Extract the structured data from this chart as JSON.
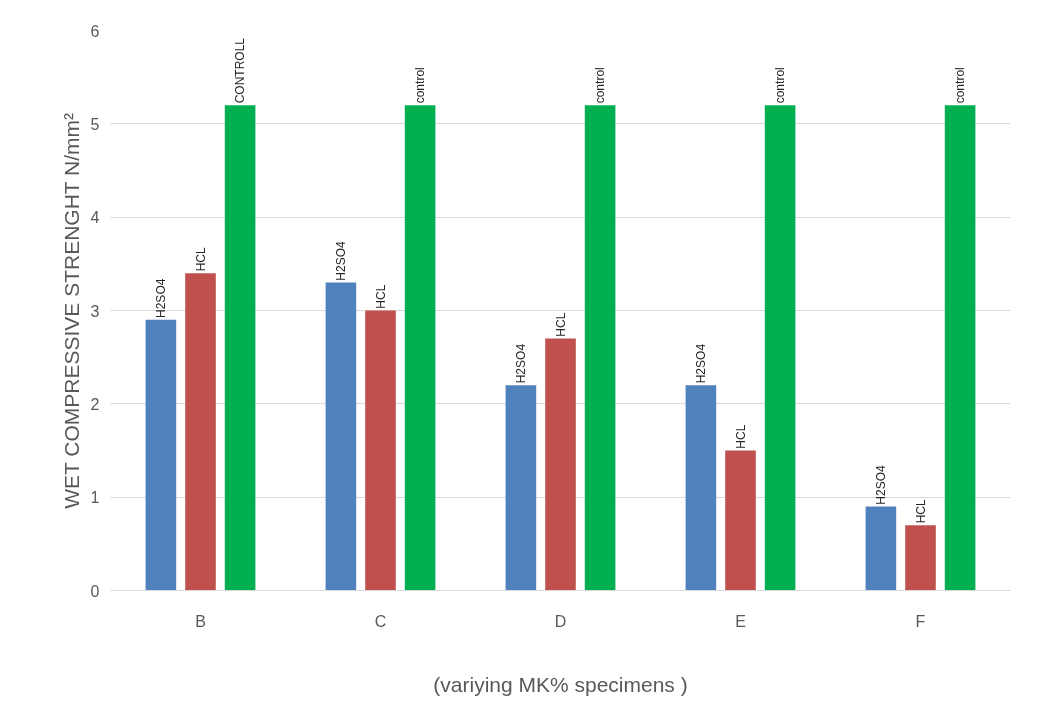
{
  "chart_data": {
    "type": "bar",
    "xlabel": "(variying MK% specimens )",
    "ylabel": "WET COMPRESSIVE STRENGHT N/mm²",
    "categories": [
      "B",
      "C",
      "D",
      "E",
      "F"
    ],
    "series": [
      {
        "color": "#4f81bd",
        "values": [
          2.9,
          3.3,
          2.2,
          2.2,
          0.9
        ],
        "value_labels": [
          "H2SO4",
          "H2SO4",
          "H2SO4",
          "H2SO4",
          "H2SO4"
        ]
      },
      {
        "color": "#c0504d",
        "values": [
          3.4,
          3.0,
          2.7,
          1.5,
          0.7
        ],
        "value_labels": [
          "HCL",
          "HCL",
          "HCL",
          "HCL",
          "HCL"
        ]
      },
      {
        "color": "#00b050",
        "values": [
          5.2,
          5.2,
          5.2,
          5.2,
          5.2
        ],
        "value_labels": [
          "CONTROLL",
          "control",
          "control",
          "control",
          "control"
        ]
      }
    ],
    "ylim": [
      0,
      6
    ],
    "yticks": [
      0,
      1,
      2,
      3,
      4,
      5,
      6
    ],
    "grid": "y"
  }
}
